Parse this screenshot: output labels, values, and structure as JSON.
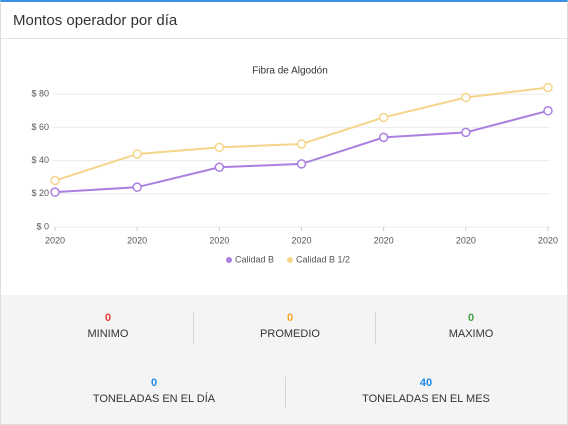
{
  "header": {
    "title": "Montos operador por día"
  },
  "chart_data": {
    "type": "line",
    "title": "Fibra de Algodón",
    "categories": [
      "2020",
      "2020",
      "2020",
      "2020",
      "2020",
      "2020",
      "2020"
    ],
    "series": [
      {
        "name": "Calidad B",
        "color": "#a97fe0",
        "values": [
          21,
          24,
          36,
          38,
          54,
          57,
          70
        ]
      },
      {
        "name": "Calidad B 1/2",
        "color": "#f5d58a",
        "values": [
          28,
          44,
          48,
          50,
          66,
          78,
          84
        ]
      }
    ],
    "ylim": [
      0,
      90
    ],
    "yticks": [
      {
        "value": 0,
        "label": "$ 0"
      },
      {
        "value": 20,
        "label": "$ 20"
      },
      {
        "value": 40,
        "label": "$ 40"
      },
      {
        "value": 60,
        "label": "$ 60"
      },
      {
        "value": 80,
        "label": "$ 80"
      }
    ],
    "grid": true,
    "legend": "bottom"
  },
  "stats": [
    [
      {
        "value": 0,
        "label": "MINIMO",
        "color": "#e53935"
      },
      {
        "value": 0,
        "label": "PROMEDIO",
        "color": "#f5a623"
      },
      {
        "value": 0,
        "label": "MAXIMO",
        "color": "#43a047"
      }
    ],
    [
      {
        "value": 0,
        "label": "TONELADAS EN EL DÍA",
        "color": "#1e88e5"
      },
      {
        "value": 40,
        "label": "TONELADAS EN EL MES",
        "color": "#1e88e5"
      }
    ]
  ]
}
